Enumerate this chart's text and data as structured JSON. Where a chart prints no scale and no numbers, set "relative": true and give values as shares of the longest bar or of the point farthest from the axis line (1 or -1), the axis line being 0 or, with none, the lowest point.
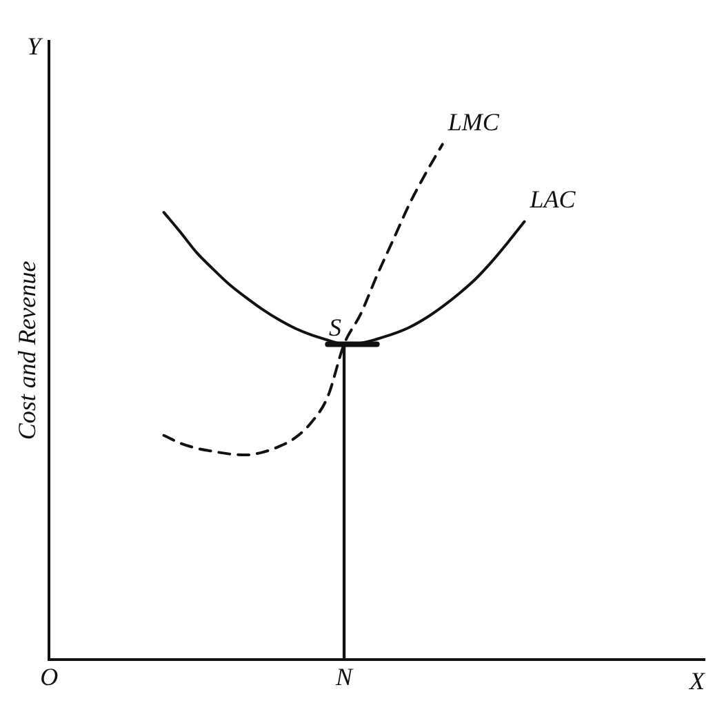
{
  "chart_data": {
    "type": "line",
    "relative": true,
    "xlabel": "X",
    "ylabel": "Cost and Revenue",
    "tick_labels": "x",
    "grid": false,
    "legend": false,
    "marker": "none",
    "categories": [
      "O",
      null,
      null,
      null,
      null,
      null,
      null,
      null,
      null,
      null,
      null,
      null,
      null,
      null,
      null,
      null,
      null,
      null,
      "N",
      null,
      null,
      null,
      null,
      null,
      null,
      null,
      null,
      null,
      null,
      null,
      null,
      null,
      null,
      null,
      null,
      null,
      null,
      null,
      null,
      null,
      null
    ],
    "series": [
      {
        "name": "LAC",
        "color": "#111111",
        "line_style": "solid",
        "values": [
          null,
          null,
          null,
          null,
          null,
          null,
          null,
          0.868,
          0.83,
          0.79,
          0.758,
          0.728,
          0.703,
          0.68,
          0.66,
          0.643,
          0.63,
          0.62,
          0.612,
          0.614,
          0.622,
          0.632,
          0.645,
          0.663,
          0.685,
          0.71,
          0.738,
          0.772,
          0.81,
          0.85,
          null,
          null,
          null,
          null,
          null,
          null,
          null,
          null,
          null,
          null,
          null
        ]
      },
      {
        "name": "LMC",
        "color": "#111111",
        "line_style": "dashed",
        "values": [
          null,
          null,
          null,
          null,
          null,
          null,
          null,
          0.435,
          0.42,
          0.41,
          0.404,
          0.399,
          0.397,
          0.402,
          0.413,
          0.43,
          0.46,
          0.51,
          0.612,
          0.67,
          0.745,
          0.815,
          0.885,
          0.945,
          1.0,
          null,
          null,
          null,
          null,
          null,
          null,
          null,
          null,
          null,
          null,
          null,
          null,
          null,
          null,
          null,
          null
        ]
      },
      {
        "color": "#111111",
        "line_style": "solid",
        "values": [
          null,
          null,
          null,
          null,
          null,
          null,
          null,
          null,
          null,
          null,
          null,
          null,
          null,
          null,
          null,
          null,
          null,
          0.612,
          0.612,
          0.612,
          0.612,
          null,
          null,
          null,
          null,
          null,
          null,
          null,
          null,
          null,
          null,
          null,
          null,
          null,
          null,
          null,
          null,
          null,
          null,
          null,
          null
        ]
      },
      {
        "type": "bar",
        "color": "#111111",
        "values": [
          null,
          null,
          null,
          null,
          null,
          null,
          null,
          null,
          null,
          null,
          null,
          null,
          null,
          null,
          null,
          null,
          null,
          null,
          0.612,
          null,
          null,
          null,
          null,
          null,
          null,
          null,
          null,
          null,
          null,
          null,
          null,
          null,
          null,
          null,
          null,
          null,
          null,
          null,
          null,
          null,
          null
        ]
      }
    ],
    "annotations": [
      {
        "text": "S",
        "x": "N",
        "y": 0.612
      },
      "Y"
    ]
  }
}
